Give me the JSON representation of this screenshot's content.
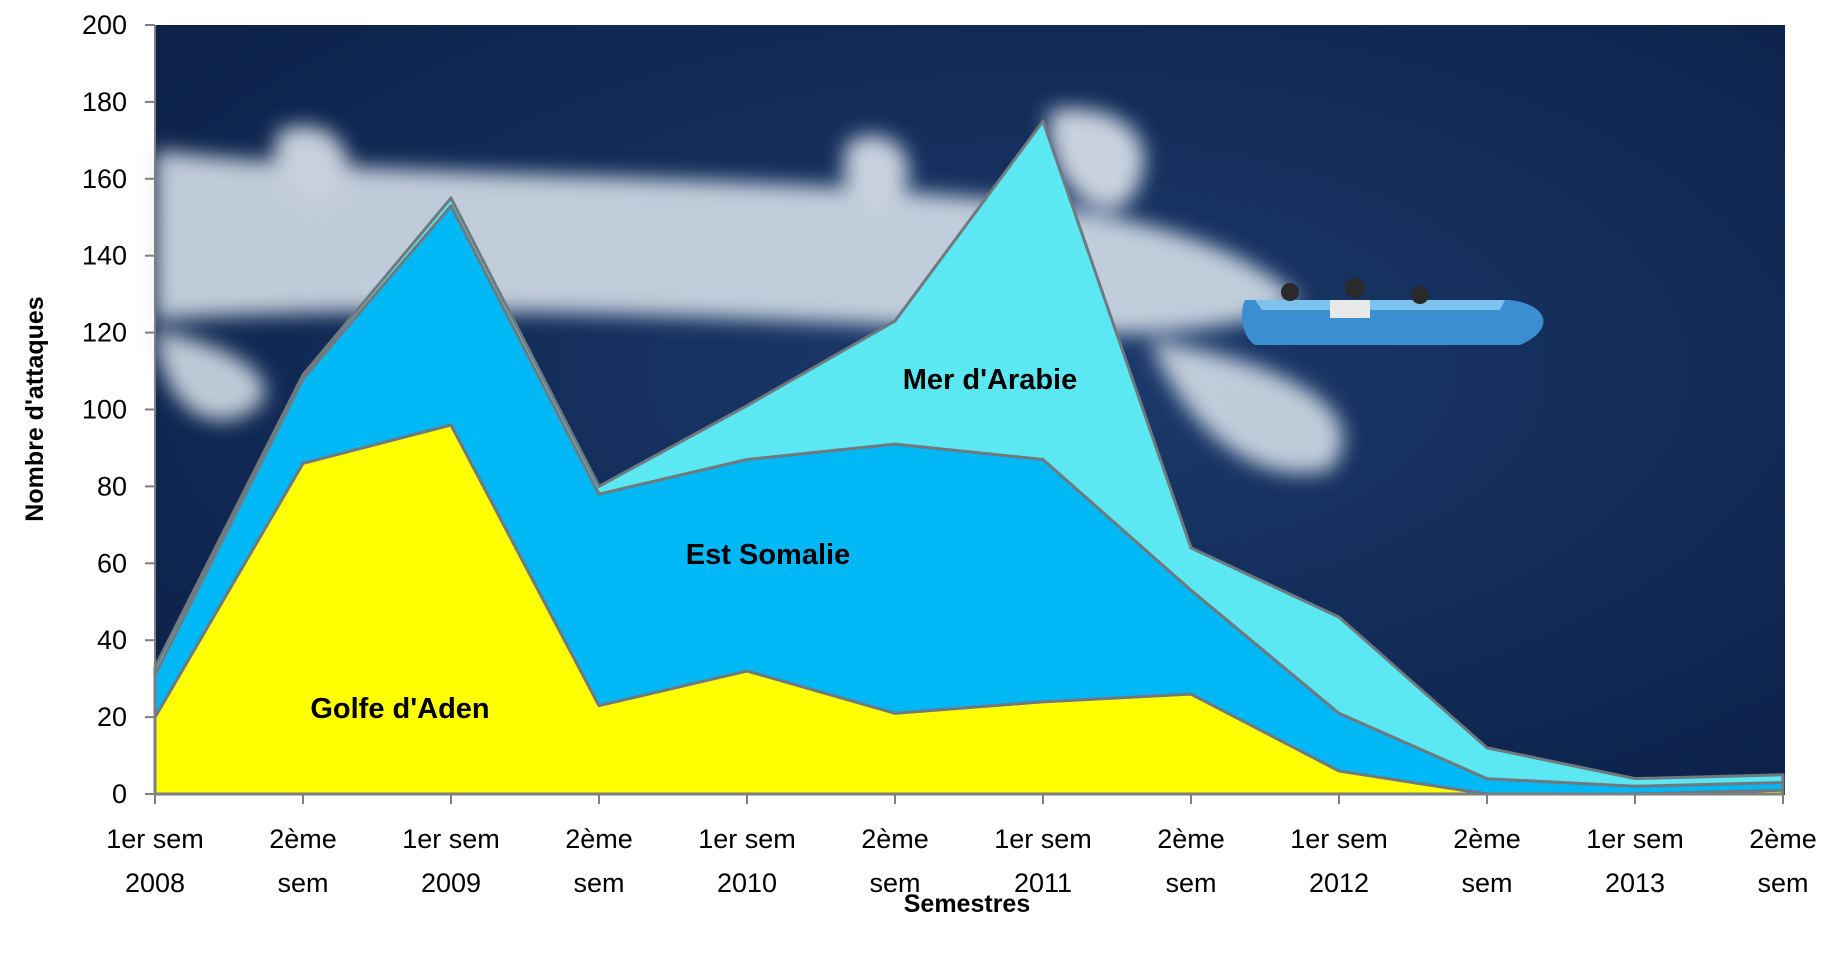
{
  "chart_data": {
    "type": "area",
    "stacked": true,
    "ylabel": "Nombre d'attaques",
    "xlabel": "Semestres",
    "ylim": [
      0,
      200
    ],
    "yticks": [
      "0",
      "20",
      "40",
      "60",
      "80",
      "100",
      "120",
      "140",
      "160",
      "180",
      "200"
    ],
    "categories": [
      [
        "1er sem",
        "2008"
      ],
      [
        "2ème",
        "sem"
      ],
      [
        "1er sem",
        "2009"
      ],
      [
        "2ème",
        "sem"
      ],
      [
        "1er sem",
        "2010"
      ],
      [
        "2ème",
        "sem"
      ],
      [
        "1er sem",
        "2011"
      ],
      [
        "2ème",
        "sem"
      ],
      [
        "1er sem",
        "2012"
      ],
      [
        "2ème",
        "sem"
      ],
      [
        "1er sem",
        "2013"
      ],
      [
        "2ème",
        "sem"
      ]
    ],
    "series": [
      {
        "name": "Golfe d'Aden",
        "color": "#ffff00",
        "values": [
          20,
          86,
          96,
          23,
          32,
          21,
          24,
          26,
          6,
          0,
          0,
          1
        ]
      },
      {
        "name": "Est Somalie",
        "color": "#00b8f5",
        "values": [
          11,
          22,
          57,
          55,
          55,
          70,
          63,
          27,
          15,
          4,
          2,
          2
        ]
      },
      {
        "name": "Mer d'Arabie",
        "color": "#5ce8f2",
        "values": [
          2,
          1,
          2,
          2,
          14,
          32,
          88,
          11,
          25,
          8,
          2,
          2
        ]
      }
    ],
    "background": "photo-boat-on-ocean",
    "grid": false
  }
}
